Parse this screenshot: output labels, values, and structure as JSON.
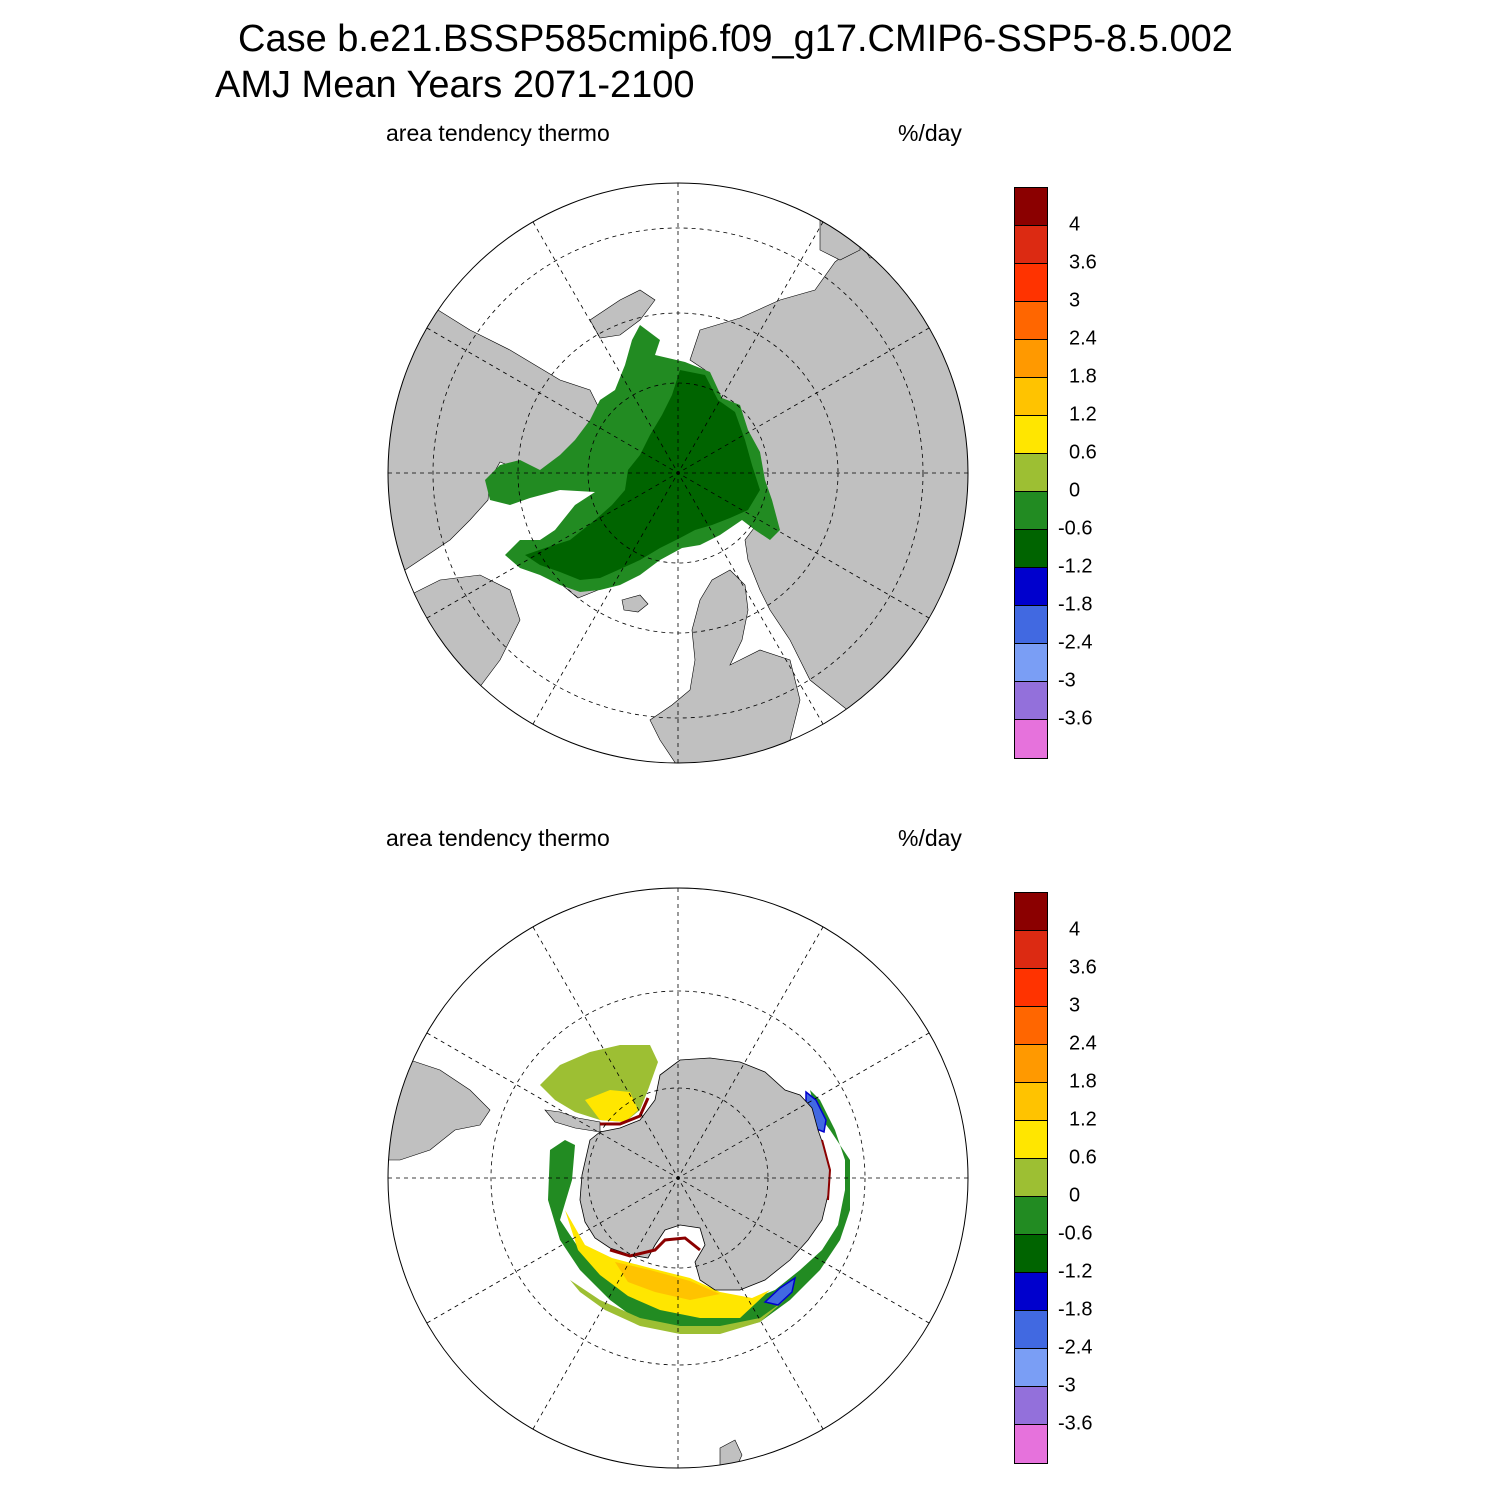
{
  "header": {
    "line1": "Case b.e21.BSSP585cmip6.f09_g17.CMIP6-SSP5-8.5.002",
    "line2": "AMJ Mean   Years 2071-2100"
  },
  "panels": [
    {
      "id": "north",
      "left_label": "area tendency thermo",
      "right_label": "%/day"
    },
    {
      "id": "south",
      "left_label": "area tendency thermo",
      "right_label": "%/day"
    }
  ],
  "colorbar": {
    "colors": [
      "#8b0000",
      "#dc2a12",
      "#ff3300",
      "#ff6600",
      "#ff9900",
      "#ffc300",
      "#ffe600",
      "#9dbf33",
      "#228b22",
      "#006400",
      "#0000cd",
      "#4169e1",
      "#7a9ef5",
      "#9370db",
      "#e672dc"
    ],
    "labels": [
      "4",
      "3.6",
      "3",
      "2.4",
      "1.8",
      "1.2",
      "0.6",
      "0",
      "-0.6",
      "-1.2",
      "-1.8",
      "-2.4",
      "-3",
      "-3.6"
    ]
  },
  "colors": {
    "land": "#c0c0c0",
    "ocean": "#ffffff"
  }
}
